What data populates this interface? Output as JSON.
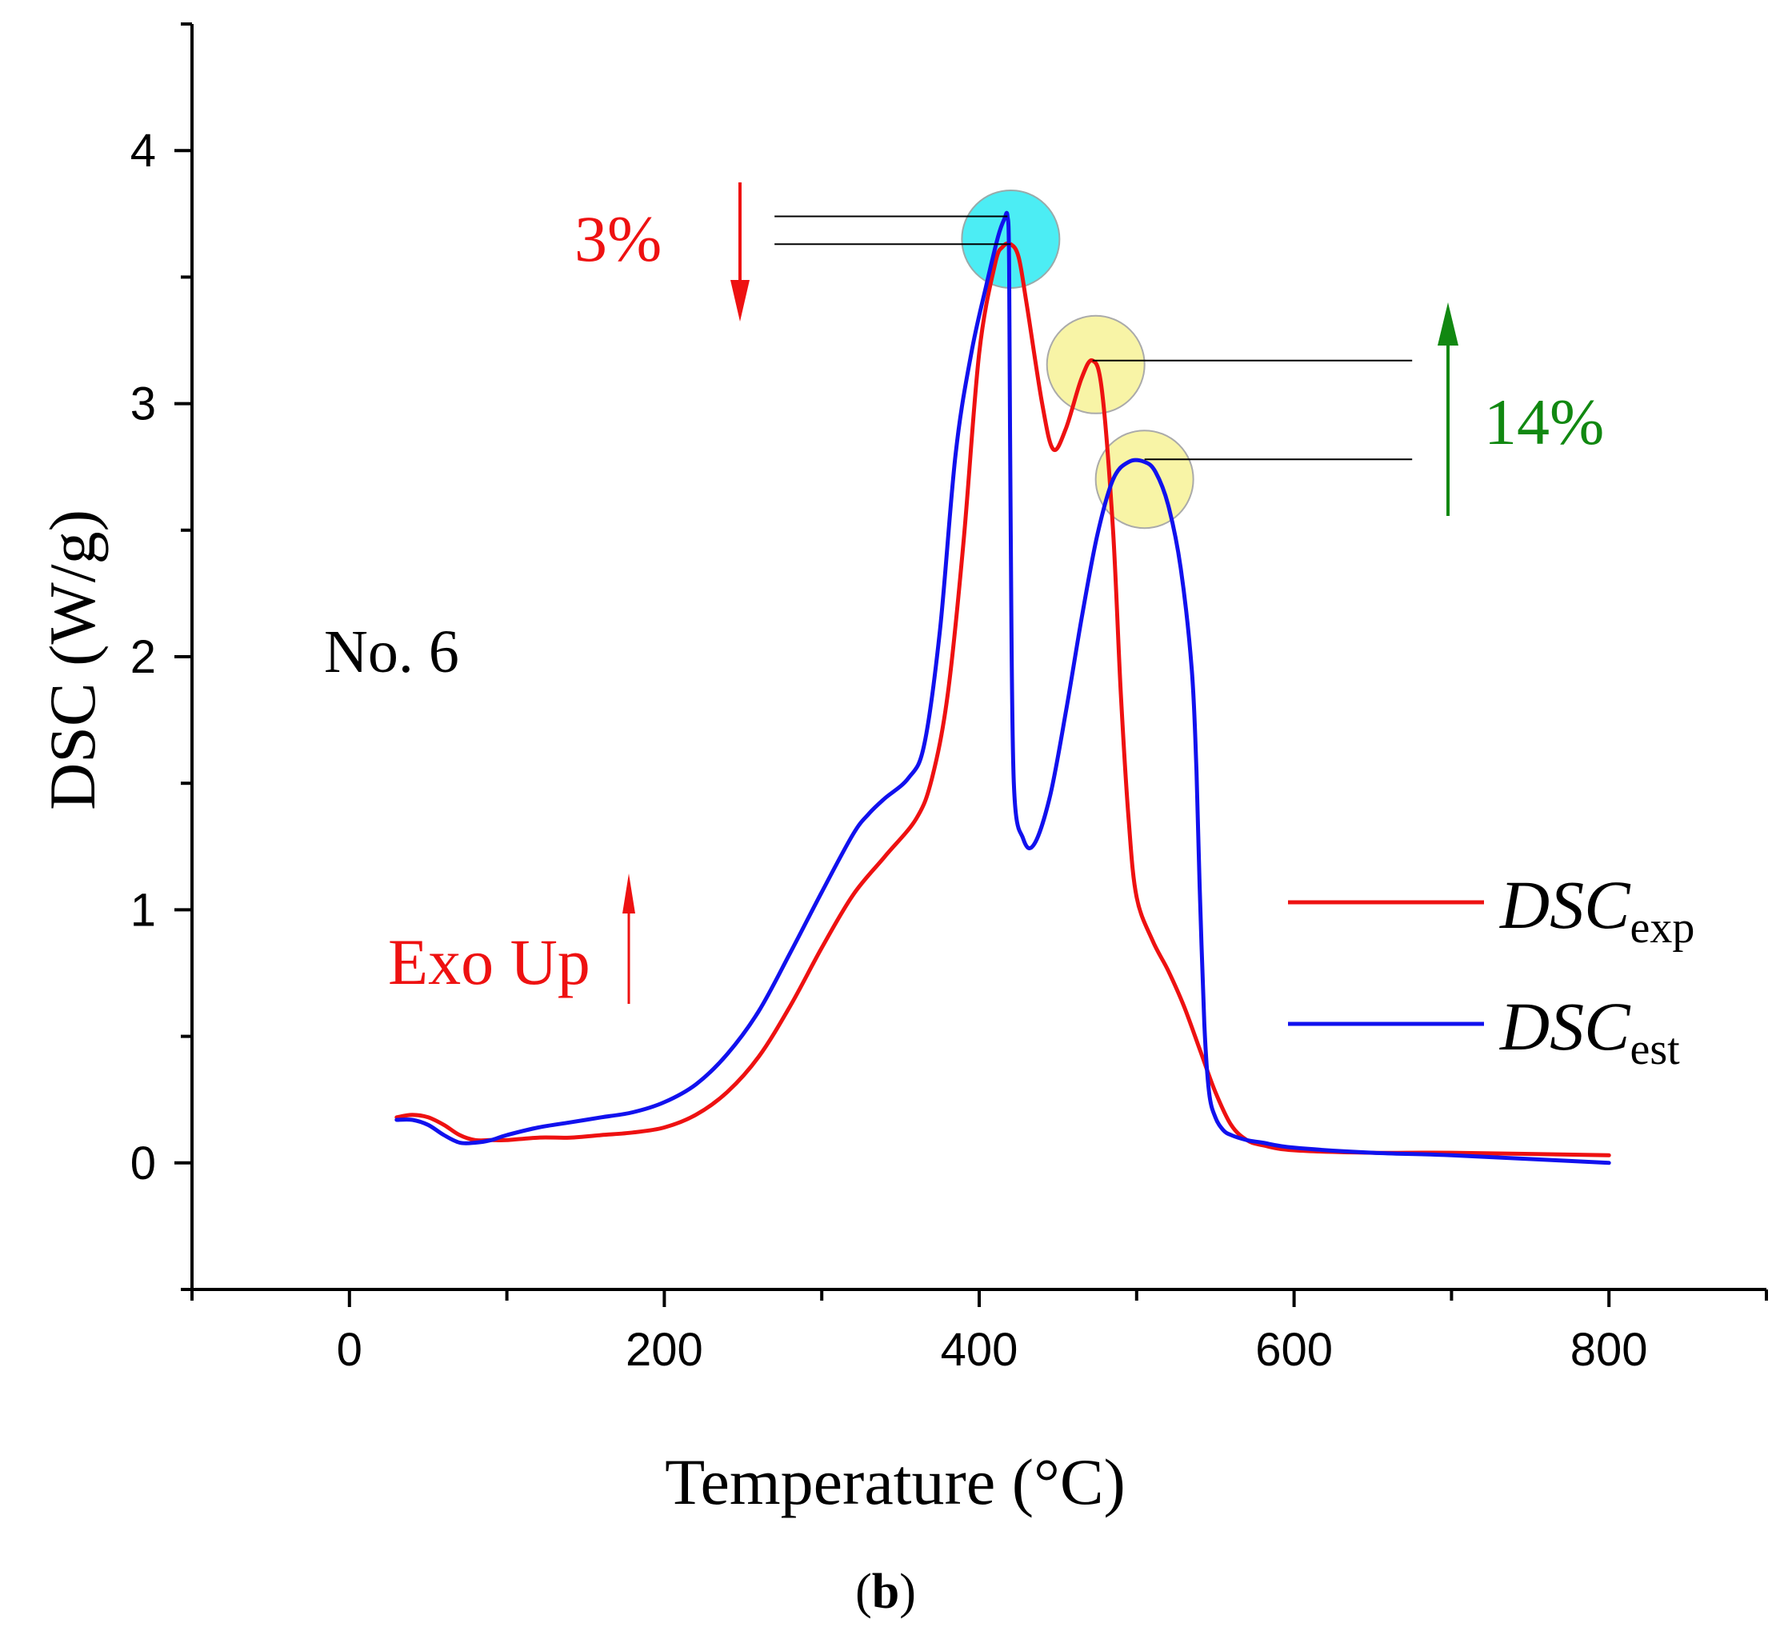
{
  "chart_data": {
    "type": "line",
    "title": "",
    "xlabel": "Temperature (°C)",
    "ylabel": "DSC (W/g)",
    "xlim": [
      -100,
      900
    ],
    "ylim": [
      -0.5,
      4.5
    ],
    "x_ticks": [
      0,
      200,
      400,
      600,
      800
    ],
    "y_ticks": [
      0,
      1,
      2,
      3,
      4
    ],
    "x_tick_labels": [
      "0",
      "200",
      "400",
      "600",
      "800"
    ],
    "y_tick_labels": [
      "0",
      "1",
      "2",
      "3",
      "4"
    ],
    "grid": false,
    "legend_position": "right",
    "series": [
      {
        "name": "DSC",
        "subscript": "exp",
        "color": "#ee1111",
        "x": [
          30,
          40,
          50,
          60,
          70,
          80,
          90,
          100,
          120,
          140,
          160,
          180,
          200,
          220,
          240,
          260,
          280,
          300,
          320,
          340,
          360,
          370,
          380,
          390,
          400,
          410,
          415,
          420,
          425,
          430,
          440,
          447,
          455,
          465,
          472,
          478,
          485,
          490,
          495,
          500,
          510,
          520,
          530,
          540,
          550,
          560,
          570,
          580,
          600,
          650,
          700,
          800
        ],
        "y": [
          0.18,
          0.19,
          0.18,
          0.15,
          0.11,
          0.09,
          0.09,
          0.09,
          0.1,
          0.1,
          0.11,
          0.12,
          0.14,
          0.19,
          0.28,
          0.42,
          0.62,
          0.85,
          1.06,
          1.21,
          1.36,
          1.52,
          1.85,
          2.45,
          3.2,
          3.55,
          3.62,
          3.63,
          3.58,
          3.4,
          3.0,
          2.82,
          2.9,
          3.1,
          3.17,
          3.05,
          2.5,
          1.85,
          1.35,
          1.05,
          0.88,
          0.76,
          0.62,
          0.45,
          0.28,
          0.15,
          0.09,
          0.07,
          0.05,
          0.04,
          0.04,
          0.03
        ]
      },
      {
        "name": "DSC",
        "subscript": "est",
        "color": "#1111ee",
        "x": [
          30,
          40,
          50,
          60,
          70,
          80,
          90,
          100,
          120,
          140,
          160,
          180,
          200,
          220,
          240,
          260,
          280,
          300,
          320,
          330,
          340,
          355,
          365,
          375,
          385,
          395,
          405,
          412,
          416,
          418,
          419,
          420,
          422,
          428,
          435,
          445,
          455,
          465,
          475,
          485,
          495,
          505,
          512,
          520,
          528,
          535,
          538,
          540,
          543,
          546,
          550,
          555,
          560,
          570,
          580,
          600,
          650,
          700,
          800
        ],
        "y": [
          0.17,
          0.17,
          0.15,
          0.11,
          0.08,
          0.08,
          0.09,
          0.11,
          0.14,
          0.16,
          0.18,
          0.2,
          0.24,
          0.31,
          0.43,
          0.6,
          0.83,
          1.07,
          1.3,
          1.38,
          1.44,
          1.52,
          1.65,
          2.1,
          2.8,
          3.2,
          3.48,
          3.66,
          3.73,
          3.74,
          3.55,
          2.5,
          1.5,
          1.28,
          1.26,
          1.45,
          1.78,
          2.15,
          2.48,
          2.7,
          2.77,
          2.77,
          2.73,
          2.6,
          2.35,
          1.95,
          1.55,
          1.1,
          0.55,
          0.28,
          0.18,
          0.13,
          0.11,
          0.09,
          0.08,
          0.06,
          0.04,
          0.03,
          0.0
        ]
      }
    ],
    "annotations": {
      "sample_label": "No. 6",
      "exo_label": "Exo Up",
      "pct_first_peak": "3%",
      "pct_second_peak": "14%",
      "panel_label_open": "(",
      "panel_label_letter": "b",
      "panel_label_close": ")",
      "first_peak_markers": {
        "est_peak": {
          "x": 418,
          "y": 3.74
        },
        "exp_peak": {
          "x": 420,
          "y": 3.63
        },
        "line_start_x": 270,
        "circle_center": {
          "x": 420,
          "y": 3.65
        },
        "circle_color": "#00e5f0"
      },
      "second_peak_markers": {
        "exp_peak": {
          "x": 472,
          "y": 3.17
        },
        "est_peak": {
          "x": 505,
          "y": 2.78
        },
        "line_end_x": 675,
        "circle_color": "#f5ef80"
      },
      "arrow_down_color": "#ee1111",
      "arrow_up_color": "#118811"
    }
  }
}
